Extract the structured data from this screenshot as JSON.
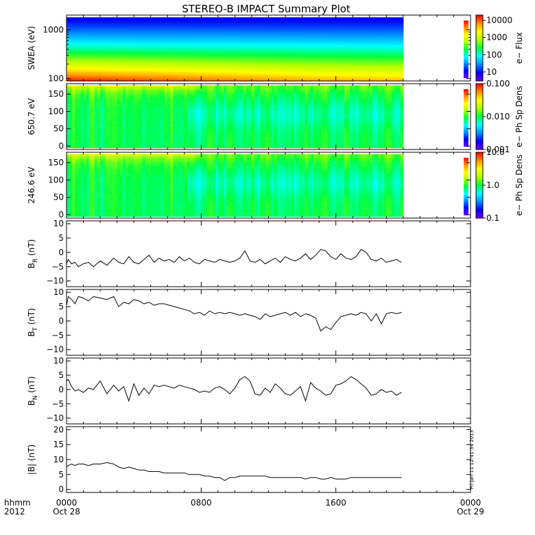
{
  "title": "STEREO-B IMPACT Summary Plot",
  "footer": {
    "left_top": "hhmm",
    "left_bottom": "2012",
    "x_ticks": [
      {
        "top": "0000",
        "bottom": "Oct 28",
        "hour": 0
      },
      {
        "top": "0800",
        "bottom": "",
        "hour": 8
      },
      {
        "top": "1600",
        "bottom": "",
        "hour": 16
      },
      {
        "top": "0000",
        "bottom": "Oct 29",
        "hour": 24
      }
    ],
    "stamp": "Fri Jan 11 12:41:34 2013"
  },
  "colors": {
    "colormap": [
      "#7000ff",
      "#0000ff",
      "#0090ff",
      "#00ffff",
      "#00ff40",
      "#b0ff00",
      "#ffff00",
      "#ff9000",
      "#ff0000"
    ]
  },
  "chart_data": [
    {
      "id": "swea",
      "type": "heatmap",
      "ylabel": "SWEA (eV)",
      "ylog": true,
      "ylim": [
        90,
        2000
      ],
      "yticks": [
        {
          "v": 100,
          "t": "100"
        },
        {
          "v": 1000,
          "t": "1000"
        }
      ],
      "data_x_range": [
        0,
        20
      ],
      "colorbar": {
        "label": "e− Flux",
        "log": true,
        "range": [
          3,
          20000
        ],
        "ticks": [
          {
            "v": 10,
            "t": "10"
          },
          {
            "v": 100,
            "t": "100"
          },
          {
            "v": 1000,
            "t": "1000"
          },
          {
            "v": 10000,
            "t": "10000"
          }
        ]
      }
    },
    {
      "id": "pa650",
      "type": "heatmap",
      "ylabel": "650.7 eV",
      "ylim": [
        -10,
        180
      ],
      "yticks": [
        {
          "v": 0,
          "t": "0"
        },
        {
          "v": 50,
          "t": "50"
        },
        {
          "v": 100,
          "t": "100"
        },
        {
          "v": 150,
          "t": "150"
        }
      ],
      "data_x_range": [
        0,
        20
      ],
      "colorbar": {
        "label": "e− Ph Sp Dens",
        "log": true,
        "range": [
          0.001,
          0.1
        ],
        "ticks": [
          {
            "v": 0.001,
            "t": "0.001"
          },
          {
            "v": 0.01,
            "t": "0.010"
          },
          {
            "v": 0.1,
            "t": "0.100"
          }
        ]
      }
    },
    {
      "id": "pa246",
      "type": "heatmap",
      "ylabel": "246.6 eV",
      "ylim": [
        -10,
        180
      ],
      "yticks": [
        {
          "v": 0,
          "t": "0"
        },
        {
          "v": 50,
          "t": "50"
        },
        {
          "v": 100,
          "t": "100"
        },
        {
          "v": 150,
          "t": "150"
        }
      ],
      "data_x_range": [
        0,
        20
      ],
      "colorbar": {
        "label": "e− Ph Sp Dens",
        "log": true,
        "range": [
          0.1,
          10
        ],
        "ticks": [
          {
            "v": 0.1,
            "t": "0.1"
          },
          {
            "v": 1,
            "t": "1.0"
          },
          {
            "v": 10,
            "t": "10.0"
          }
        ]
      }
    },
    {
      "id": "br",
      "type": "line",
      "ylabel_main": "B",
      "ylabel_sub": "R",
      "ylabel_unit": " (nT)",
      "ylim": [
        -12,
        11
      ],
      "yticks": [
        {
          "v": -10,
          "t": "−10"
        },
        {
          "v": -5,
          "t": "−5"
        },
        {
          "v": 0,
          "t": "0"
        },
        {
          "v": 5,
          "t": "5"
        },
        {
          "v": 10,
          "t": "10"
        }
      ],
      "x": [
        0,
        0.1,
        0.3,
        0.5,
        0.7,
        1.0,
        1.3,
        1.6,
        2.0,
        2.4,
        2.8,
        3.1,
        3.4,
        3.7,
        4.0,
        4.3,
        4.6,
        4.9,
        5.2,
        5.5,
        5.8,
        6.1,
        6.4,
        6.7,
        7.0,
        7.3,
        7.6,
        7.9,
        8.2,
        8.5,
        8.8,
        9.1,
        9.4,
        9.7,
        10.0,
        10.3,
        10.6,
        10.9,
        11.2,
        11.5,
        11.8,
        12.1,
        12.4,
        12.7,
        13.0,
        13.3,
        13.6,
        13.9,
        14.2,
        14.5,
        14.8,
        15.1,
        15.4,
        15.7,
        16.0,
        16.3,
        16.6,
        16.9,
        17.2,
        17.5,
        17.8,
        18.1,
        18.4,
        18.7,
        19.0,
        19.3,
        19.6,
        19.9
      ],
      "y": [
        -4,
        -2.5,
        -4,
        -3.5,
        -5,
        -4,
        -3.5,
        -5,
        -3,
        -4.5,
        -2,
        -3.5,
        -4,
        -1.5,
        -3.5,
        -4,
        -2.5,
        -1,
        -3.5,
        -2,
        -3,
        -2.5,
        -3.5,
        -1.5,
        -3,
        -2,
        -3.5,
        -4,
        -2.5,
        -3,
        -3.5,
        -2.5,
        -3,
        -3.5,
        -3,
        -2,
        0.5,
        -3,
        -3.5,
        -2.5,
        -4,
        -3,
        -2,
        -3.5,
        -1.5,
        -2.5,
        -3,
        -2,
        -0.5,
        -2.5,
        -1,
        1,
        0.5,
        -1.5,
        -2.5,
        -0.5,
        -2,
        -2.5,
        -1.5,
        1,
        0,
        -2.5,
        -3,
        -2,
        -3.5,
        -3,
        -2.5,
        -3.5
      ]
    },
    {
      "id": "bt",
      "type": "line",
      "ylabel_main": "B",
      "ylabel_sub": "T",
      "ylabel_unit": " (nT)",
      "ylim": [
        -12,
        11
      ],
      "yticks": [
        {
          "v": -10,
          "t": "−10"
        },
        {
          "v": -5,
          "t": "−5"
        },
        {
          "v": 0,
          "t": "0"
        },
        {
          "v": 5,
          "t": "5"
        },
        {
          "v": 10,
          "t": "10"
        }
      ],
      "x": [
        0,
        0.1,
        0.3,
        0.5,
        0.7,
        1.0,
        1.3,
        1.6,
        2.0,
        2.4,
        2.8,
        3.1,
        3.4,
        3.7,
        4.0,
        4.3,
        4.6,
        4.9,
        5.2,
        5.5,
        5.8,
        6.1,
        6.4,
        6.7,
        7.0,
        7.3,
        7.6,
        7.9,
        8.2,
        8.5,
        8.8,
        9.1,
        9.4,
        9.7,
        10.0,
        10.3,
        10.6,
        10.9,
        11.2,
        11.5,
        11.8,
        12.1,
        12.4,
        12.7,
        13.0,
        13.3,
        13.6,
        13.9,
        14.2,
        14.5,
        14.8,
        15.1,
        15.4,
        15.7,
        16.0,
        16.3,
        16.6,
        16.9,
        17.2,
        17.5,
        17.8,
        18.1,
        18.4,
        18.7,
        19.0,
        19.3,
        19.6,
        19.9
      ],
      "y": [
        5.5,
        8.5,
        7.5,
        6,
        8.5,
        8,
        7,
        8.5,
        8,
        7.5,
        8.5,
        5,
        6.5,
        6,
        7.5,
        7,
        6,
        6.5,
        5.5,
        6,
        6,
        5.5,
        5,
        4.5,
        4,
        3.5,
        2.5,
        3,
        2,
        3.5,
        2.5,
        3,
        2.5,
        3,
        2.5,
        2,
        2.5,
        2,
        1.5,
        0.5,
        2.5,
        1.5,
        2,
        2.5,
        3,
        2,
        3,
        1.5,
        2.5,
        2,
        1,
        -3.5,
        -2,
        -3,
        -0.5,
        1.5,
        2,
        2.5,
        2,
        3,
        2.5,
        0,
        2.5,
        -1,
        2.5,
        3,
        2.5,
        3
      ]
    },
    {
      "id": "bn",
      "type": "line",
      "ylabel_main": "B",
      "ylabel_sub": "N",
      "ylabel_unit": " (nT)",
      "ylim": [
        -12,
        11
      ],
      "yticks": [
        {
          "v": -10,
          "t": "−10"
        },
        {
          "v": -5,
          "t": "−5"
        },
        {
          "v": 0,
          "t": "0"
        },
        {
          "v": 5,
          "t": "5"
        },
        {
          "v": 10,
          "t": "10"
        }
      ],
      "x": [
        0,
        0.1,
        0.3,
        0.5,
        0.7,
        1.0,
        1.3,
        1.6,
        2.0,
        2.4,
        2.8,
        3.1,
        3.4,
        3.7,
        4.0,
        4.3,
        4.6,
        4.9,
        5.2,
        5.5,
        5.8,
        6.1,
        6.4,
        6.7,
        7.0,
        7.3,
        7.6,
        7.9,
        8.2,
        8.5,
        8.8,
        9.1,
        9.4,
        9.7,
        10.0,
        10.3,
        10.6,
        10.9,
        11.2,
        11.5,
        11.8,
        12.1,
        12.4,
        12.7,
        13.0,
        13.3,
        13.6,
        13.9,
        14.2,
        14.5,
        14.8,
        15.1,
        15.4,
        15.7,
        16.0,
        16.3,
        16.6,
        16.9,
        17.2,
        17.5,
        17.8,
        18.1,
        18.4,
        18.7,
        19.0,
        19.3,
        19.6,
        19.9
      ],
      "y": [
        3,
        3.5,
        1,
        -0.5,
        0,
        -1,
        0.5,
        0,
        3,
        -1.5,
        1.5,
        -0.5,
        1,
        -4,
        2,
        -2,
        0.5,
        -1.5,
        1.5,
        1,
        1.5,
        1,
        0.5,
        1.5,
        1,
        0.5,
        0,
        -1,
        -0.5,
        -1,
        0.5,
        1,
        0,
        -1.5,
        0.5,
        3.5,
        4.5,
        3,
        -1.5,
        -2,
        0.5,
        -1,
        2,
        0.5,
        -1.5,
        -2,
        -0.5,
        1,
        -4,
        2.5,
        0.5,
        -0.5,
        -2,
        -1.5,
        1.5,
        2,
        3,
        4.5,
        3.5,
        2,
        0.5,
        -2,
        -1.5,
        0,
        -1,
        -0.5,
        -2,
        -1
      ]
    },
    {
      "id": "bmag",
      "type": "line",
      "ylabel_main": "|B| (nT)",
      "ylim": [
        -1,
        21
      ],
      "yticks": [
        {
          "v": 0,
          "t": "0"
        },
        {
          "v": 5,
          "t": "5"
        },
        {
          "v": 10,
          "t": "10"
        },
        {
          "v": 15,
          "t": "15"
        },
        {
          "v": 20,
          "t": "20"
        }
      ],
      "x": [
        0,
        0.1,
        0.3,
        0.5,
        0.7,
        1.0,
        1.3,
        1.6,
        2.0,
        2.4,
        2.8,
        3.1,
        3.4,
        3.7,
        4.0,
        4.3,
        4.6,
        4.9,
        5.2,
        5.5,
        5.8,
        6.1,
        6.4,
        6.7,
        7.0,
        7.3,
        7.6,
        7.9,
        8.2,
        8.5,
        8.8,
        9.1,
        9.4,
        9.7,
        10.0,
        10.3,
        10.6,
        10.9,
        11.2,
        11.5,
        11.8,
        12.1,
        12.4,
        12.7,
        13.0,
        13.3,
        13.6,
        13.9,
        14.2,
        14.5,
        14.8,
        15.1,
        15.4,
        15.7,
        16.0,
        16.3,
        16.6,
        16.9,
        17.2,
        17.5,
        17.8,
        18.1,
        18.4,
        18.7,
        19.0,
        19.3,
        19.6,
        19.9
      ],
      "y": [
        7.5,
        8,
        8.5,
        8,
        8.5,
        8.5,
        8,
        8.5,
        8.5,
        9,
        8.5,
        7.5,
        7,
        7.5,
        7,
        6.5,
        6.5,
        6,
        6,
        6,
        5.5,
        5.5,
        5.5,
        5.5,
        5.5,
        5,
        5,
        5,
        4.5,
        4.5,
        4,
        4,
        3,
        4,
        4,
        4.5,
        4.5,
        4.5,
        4.5,
        4.5,
        4.5,
        4,
        4,
        4,
        4,
        4,
        4,
        4,
        3.5,
        4,
        4,
        3.5,
        3.5,
        4,
        3.5,
        3.5,
        3.5,
        4,
        4,
        4,
        4,
        4,
        4,
        4,
        4,
        4,
        4,
        4
      ]
    }
  ]
}
